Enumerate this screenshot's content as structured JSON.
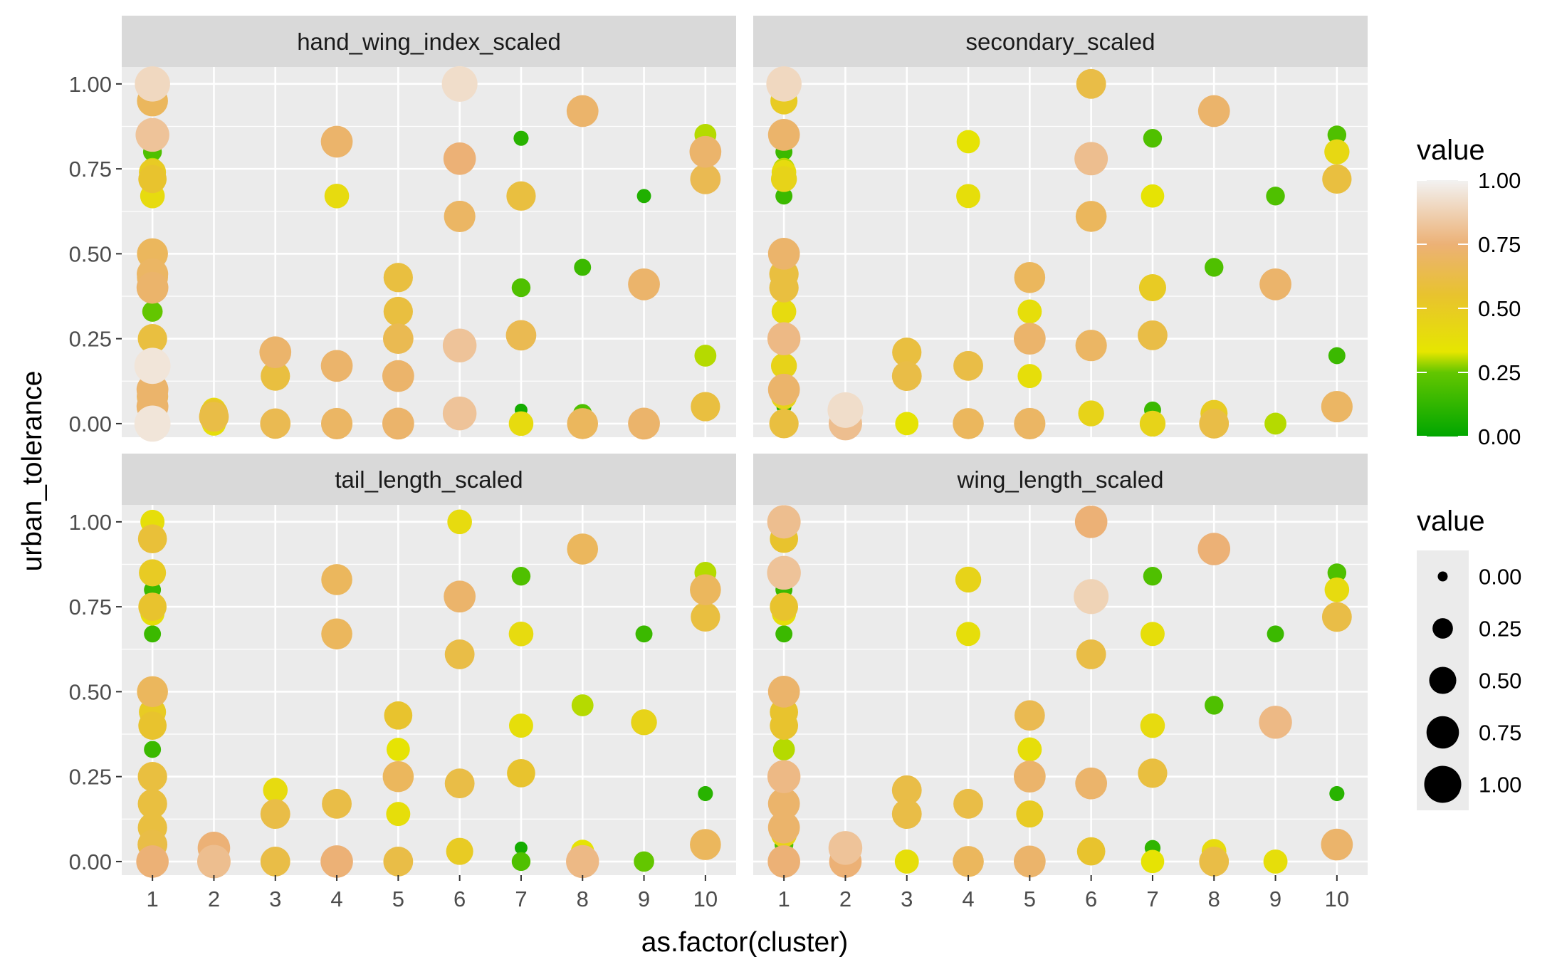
{
  "chart_data": {
    "type": "scatter",
    "xlabel": "as.factor(cluster)",
    "ylabel": "urban_tolerance",
    "x_categories": [
      "1",
      "2",
      "3",
      "4",
      "5",
      "6",
      "7",
      "8",
      "9",
      "10"
    ],
    "yticks": [
      0,
      0.25,
      0.5,
      0.75,
      1.0
    ],
    "ytick_labels": [
      "0.00",
      "0.25",
      "0.50",
      "0.75",
      "1.00"
    ],
    "ylim": [
      -0.04,
      1.05
    ],
    "grid": true,
    "facet_layout": "2x2",
    "color_scale": {
      "title": "value",
      "stops": [
        {
          "v": 0.0,
          "color": "#00a600"
        },
        {
          "v": 0.25,
          "color": "#63c600"
        },
        {
          "v": 0.33,
          "color": "#e6e600"
        },
        {
          "v": 0.55,
          "color": "#e8c32e"
        },
        {
          "v": 0.75,
          "color": "#ecb176"
        },
        {
          "v": 1.0,
          "color": "#f2f2f2"
        }
      ],
      "tick_values": [
        0,
        0.25,
        0.5,
        0.75,
        1.0
      ],
      "tick_labels": [
        "0.00",
        "0.25",
        "0.50",
        "0.75",
        "1.00"
      ],
      "legend_position": "right"
    },
    "size_scale": {
      "title": "value",
      "values": [
        0,
        0.25,
        0.5,
        0.75,
        1.0
      ],
      "labels": [
        "0.00",
        "0.25",
        "0.50",
        "0.75",
        "1.00"
      ],
      "legend_position": "right"
    },
    "facets": [
      {
        "name": "hand_wing_index_scaled",
        "points": [
          [
            1,
            1.0,
            0.9
          ],
          [
            1,
            1.0,
            0.35
          ],
          [
            1,
            0.95,
            0.68
          ],
          [
            1,
            0.85,
            0.82
          ],
          [
            1,
            0.8,
            0.2
          ],
          [
            1,
            0.75,
            0.3
          ],
          [
            1,
            0.74,
            0.5
          ],
          [
            1,
            0.72,
            0.55
          ],
          [
            1,
            0.67,
            0.4
          ],
          [
            1,
            0.5,
            0.68
          ],
          [
            1,
            0.44,
            0.7
          ],
          [
            1,
            0.43,
            0.68
          ],
          [
            1,
            0.4,
            0.72
          ],
          [
            1,
            0.33,
            0.25
          ],
          [
            1,
            0.25,
            0.6
          ],
          [
            1,
            0.25,
            0.35
          ],
          [
            1,
            0.17,
            0.95
          ],
          [
            1,
            0.15,
            0.2
          ],
          [
            1,
            0.1,
            0.72
          ],
          [
            1,
            0.08,
            0.7
          ],
          [
            1,
            0.05,
            0.72
          ],
          [
            1,
            0.0,
            0.95
          ],
          [
            2,
            0.04,
            0.4
          ],
          [
            2,
            0.03,
            0.55
          ],
          [
            2,
            0.02,
            0.62
          ],
          [
            2,
            0.0,
            0.38
          ],
          [
            3,
            0.21,
            0.72
          ],
          [
            3,
            0.14,
            0.6
          ],
          [
            3,
            0.0,
            0.65
          ],
          [
            4,
            0.83,
            0.72
          ],
          [
            4,
            0.67,
            0.4
          ],
          [
            4,
            0.17,
            0.72
          ],
          [
            4,
            0.0,
            0.7
          ],
          [
            4,
            0.0,
            0.4
          ],
          [
            5,
            0.43,
            0.6
          ],
          [
            5,
            0.33,
            0.6
          ],
          [
            5,
            0.25,
            0.65
          ],
          [
            5,
            0.14,
            0.72
          ],
          [
            5,
            0.0,
            0.72
          ],
          [
            6,
            1.0,
            0.92
          ],
          [
            6,
            0.78,
            0.75
          ],
          [
            6,
            0.61,
            0.7
          ],
          [
            6,
            0.23,
            0.82
          ],
          [
            6,
            0.03,
            0.82
          ],
          [
            7,
            0.84,
            0.1
          ],
          [
            7,
            0.67,
            0.6
          ],
          [
            7,
            0.4,
            0.2
          ],
          [
            7,
            0.26,
            0.65
          ],
          [
            7,
            0.04,
            0.05
          ],
          [
            7,
            0.0,
            0.4
          ],
          [
            8,
            0.92,
            0.72
          ],
          [
            8,
            0.46,
            0.15
          ],
          [
            8,
            0.03,
            0.2
          ],
          [
            8,
            0.0,
            0.68
          ],
          [
            9,
            0.67,
            0.08
          ],
          [
            9,
            0.41,
            0.72
          ],
          [
            9,
            0.0,
            0.72
          ],
          [
            10,
            0.85,
            0.3
          ],
          [
            10,
            0.8,
            0.72
          ],
          [
            10,
            0.72,
            0.65
          ],
          [
            10,
            0.2,
            0.3
          ],
          [
            10,
            0.05,
            0.6
          ]
        ]
      },
      {
        "name": "secondary_scaled",
        "points": [
          [
            1,
            1.0,
            0.9
          ],
          [
            1,
            1.0,
            0.35
          ],
          [
            1,
            1.0,
            0.15
          ],
          [
            1,
            0.95,
            0.5
          ],
          [
            1,
            0.85,
            0.72
          ],
          [
            1,
            0.8,
            0.15
          ],
          [
            1,
            0.75,
            0.3
          ],
          [
            1,
            0.74,
            0.4
          ],
          [
            1,
            0.72,
            0.45
          ],
          [
            1,
            0.67,
            0.15
          ],
          [
            1,
            0.5,
            0.72
          ],
          [
            1,
            0.44,
            0.6
          ],
          [
            1,
            0.4,
            0.6
          ],
          [
            1,
            0.33,
            0.4
          ],
          [
            1,
            0.25,
            0.78
          ],
          [
            1,
            0.25,
            0.25
          ],
          [
            1,
            0.17,
            0.45
          ],
          [
            1,
            0.1,
            0.72
          ],
          [
            1,
            0.08,
            0.45
          ],
          [
            1,
            0.05,
            0.1
          ],
          [
            1,
            0.0,
            0.6
          ],
          [
            2,
            0.04,
            0.92
          ],
          [
            2,
            0.03,
            0.5
          ],
          [
            2,
            0.0,
            0.8
          ],
          [
            3,
            0.21,
            0.6
          ],
          [
            3,
            0.14,
            0.62
          ],
          [
            3,
            0.0,
            0.35
          ],
          [
            4,
            0.83,
            0.35
          ],
          [
            4,
            0.67,
            0.38
          ],
          [
            4,
            0.17,
            0.62
          ],
          [
            4,
            0.0,
            0.68
          ],
          [
            5,
            0.43,
            0.68
          ],
          [
            5,
            0.33,
            0.38
          ],
          [
            5,
            0.25,
            0.72
          ],
          [
            5,
            0.14,
            0.38
          ],
          [
            5,
            0.0,
            0.7
          ],
          [
            6,
            1.0,
            0.62
          ],
          [
            6,
            0.78,
            0.8
          ],
          [
            6,
            0.61,
            0.68
          ],
          [
            6,
            0.23,
            0.7
          ],
          [
            6,
            0.03,
            0.45
          ],
          [
            7,
            0.84,
            0.2
          ],
          [
            7,
            0.67,
            0.35
          ],
          [
            7,
            0.4,
            0.5
          ],
          [
            7,
            0.26,
            0.62
          ],
          [
            7,
            0.04,
            0.15
          ],
          [
            7,
            0.0,
            0.45
          ],
          [
            8,
            0.92,
            0.72
          ],
          [
            8,
            0.46,
            0.2
          ],
          [
            8,
            0.03,
            0.5
          ],
          [
            8,
            0.0,
            0.62
          ],
          [
            9,
            0.67,
            0.2
          ],
          [
            9,
            0.41,
            0.72
          ],
          [
            9,
            0.0,
            0.3
          ],
          [
            10,
            0.85,
            0.2
          ],
          [
            10,
            0.8,
            0.42
          ],
          [
            10,
            0.72,
            0.6
          ],
          [
            10,
            0.2,
            0.15
          ],
          [
            10,
            0.05,
            0.7
          ]
        ]
      },
      {
        "name": "tail_length_scaled",
        "points": [
          [
            1,
            1.0,
            0.38
          ],
          [
            1,
            0.95,
            0.58
          ],
          [
            1,
            0.85,
            0.5
          ],
          [
            1,
            0.8,
            0.15
          ],
          [
            1,
            0.75,
            0.55
          ],
          [
            1,
            0.73,
            0.38
          ],
          [
            1,
            0.67,
            0.15
          ],
          [
            1,
            0.5,
            0.68
          ],
          [
            1,
            0.44,
            0.5
          ],
          [
            1,
            0.4,
            0.55
          ],
          [
            1,
            0.33,
            0.15
          ],
          [
            1,
            0.25,
            0.6
          ],
          [
            1,
            0.25,
            0.25
          ],
          [
            1,
            0.17,
            0.6
          ],
          [
            1,
            0.15,
            0.25
          ],
          [
            1,
            0.1,
            0.6
          ],
          [
            1,
            0.08,
            0.38
          ],
          [
            1,
            0.05,
            0.62
          ],
          [
            1,
            0.0,
            0.75
          ],
          [
            1,
            0.0,
            0.38
          ],
          [
            2,
            0.04,
            0.75
          ],
          [
            2,
            0.03,
            0.2
          ],
          [
            2,
            0.0,
            0.8
          ],
          [
            3,
            0.21,
            0.4
          ],
          [
            3,
            0.14,
            0.62
          ],
          [
            3,
            0.0,
            0.62
          ],
          [
            4,
            0.83,
            0.68
          ],
          [
            4,
            0.67,
            0.68
          ],
          [
            4,
            0.17,
            0.62
          ],
          [
            4,
            0.0,
            0.75
          ],
          [
            4,
            0.0,
            0.38
          ],
          [
            5,
            0.43,
            0.55
          ],
          [
            5,
            0.33,
            0.35
          ],
          [
            5,
            0.25,
            0.68
          ],
          [
            5,
            0.14,
            0.38
          ],
          [
            5,
            0.0,
            0.62
          ],
          [
            6,
            1.0,
            0.4
          ],
          [
            6,
            0.78,
            0.72
          ],
          [
            6,
            0.61,
            0.62
          ],
          [
            6,
            0.23,
            0.62
          ],
          [
            6,
            0.03,
            0.5
          ],
          [
            7,
            0.84,
            0.2
          ],
          [
            7,
            0.67,
            0.4
          ],
          [
            7,
            0.4,
            0.38
          ],
          [
            7,
            0.26,
            0.55
          ],
          [
            7,
            0.04,
            0.05
          ],
          [
            7,
            0.0,
            0.2
          ],
          [
            8,
            0.92,
            0.68
          ],
          [
            8,
            0.46,
            0.3
          ],
          [
            8,
            0.03,
            0.35
          ],
          [
            8,
            0.0,
            0.78
          ],
          [
            8,
            0.0,
            0.38
          ],
          [
            9,
            0.67,
            0.15
          ],
          [
            9,
            0.41,
            0.45
          ],
          [
            9,
            0.0,
            0.25
          ],
          [
            10,
            0.85,
            0.3
          ],
          [
            10,
            0.8,
            0.68
          ],
          [
            10,
            0.72,
            0.6
          ],
          [
            10,
            0.2,
            0.1
          ],
          [
            10,
            0.05,
            0.68
          ]
        ]
      },
      {
        "name": "wing_length_scaled",
        "points": [
          [
            1,
            1.0,
            0.8
          ],
          [
            1,
            1.0,
            0.15
          ],
          [
            1,
            0.95,
            0.55
          ],
          [
            1,
            0.85,
            0.82
          ],
          [
            1,
            0.8,
            0.15
          ],
          [
            1,
            0.75,
            0.55
          ],
          [
            1,
            0.73,
            0.38
          ],
          [
            1,
            0.67,
            0.15
          ],
          [
            1,
            0.5,
            0.72
          ],
          [
            1,
            0.44,
            0.55
          ],
          [
            1,
            0.4,
            0.55
          ],
          [
            1,
            0.33,
            0.3
          ],
          [
            1,
            0.25,
            0.78
          ],
          [
            1,
            0.25,
            0.25
          ],
          [
            1,
            0.17,
            0.72
          ],
          [
            1,
            0.15,
            0.25
          ],
          [
            1,
            0.1,
            0.72
          ],
          [
            1,
            0.08,
            0.45
          ],
          [
            1,
            0.05,
            0.2
          ],
          [
            1,
            0.0,
            0.75
          ],
          [
            2,
            0.04,
            0.82
          ],
          [
            2,
            0.03,
            0.45
          ],
          [
            2,
            0.0,
            0.75
          ],
          [
            3,
            0.21,
            0.62
          ],
          [
            3,
            0.14,
            0.62
          ],
          [
            3,
            0.0,
            0.38
          ],
          [
            4,
            0.83,
            0.45
          ],
          [
            4,
            0.67,
            0.38
          ],
          [
            4,
            0.17,
            0.62
          ],
          [
            4,
            0.0,
            0.68
          ],
          [
            5,
            0.43,
            0.65
          ],
          [
            5,
            0.33,
            0.38
          ],
          [
            5,
            0.25,
            0.72
          ],
          [
            5,
            0.14,
            0.5
          ],
          [
            5,
            0.0,
            0.72
          ],
          [
            6,
            1.0,
            0.75
          ],
          [
            6,
            0.78,
            0.88
          ],
          [
            6,
            0.61,
            0.62
          ],
          [
            6,
            0.23,
            0.72
          ],
          [
            6,
            0.03,
            0.55
          ],
          [
            7,
            0.84,
            0.2
          ],
          [
            7,
            0.67,
            0.38
          ],
          [
            7,
            0.4,
            0.4
          ],
          [
            7,
            0.26,
            0.6
          ],
          [
            7,
            0.04,
            0.12
          ],
          [
            7,
            0.0,
            0.35
          ],
          [
            8,
            0.92,
            0.75
          ],
          [
            8,
            0.46,
            0.2
          ],
          [
            8,
            0.03,
            0.4
          ],
          [
            8,
            0.0,
            0.62
          ],
          [
            9,
            0.67,
            0.15
          ],
          [
            9,
            0.41,
            0.78
          ],
          [
            9,
            0.0,
            0.38
          ],
          [
            10,
            0.85,
            0.2
          ],
          [
            10,
            0.8,
            0.4
          ],
          [
            10,
            0.72,
            0.62
          ],
          [
            10,
            0.2,
            0.1
          ],
          [
            10,
            0.05,
            0.72
          ]
        ]
      }
    ]
  }
}
